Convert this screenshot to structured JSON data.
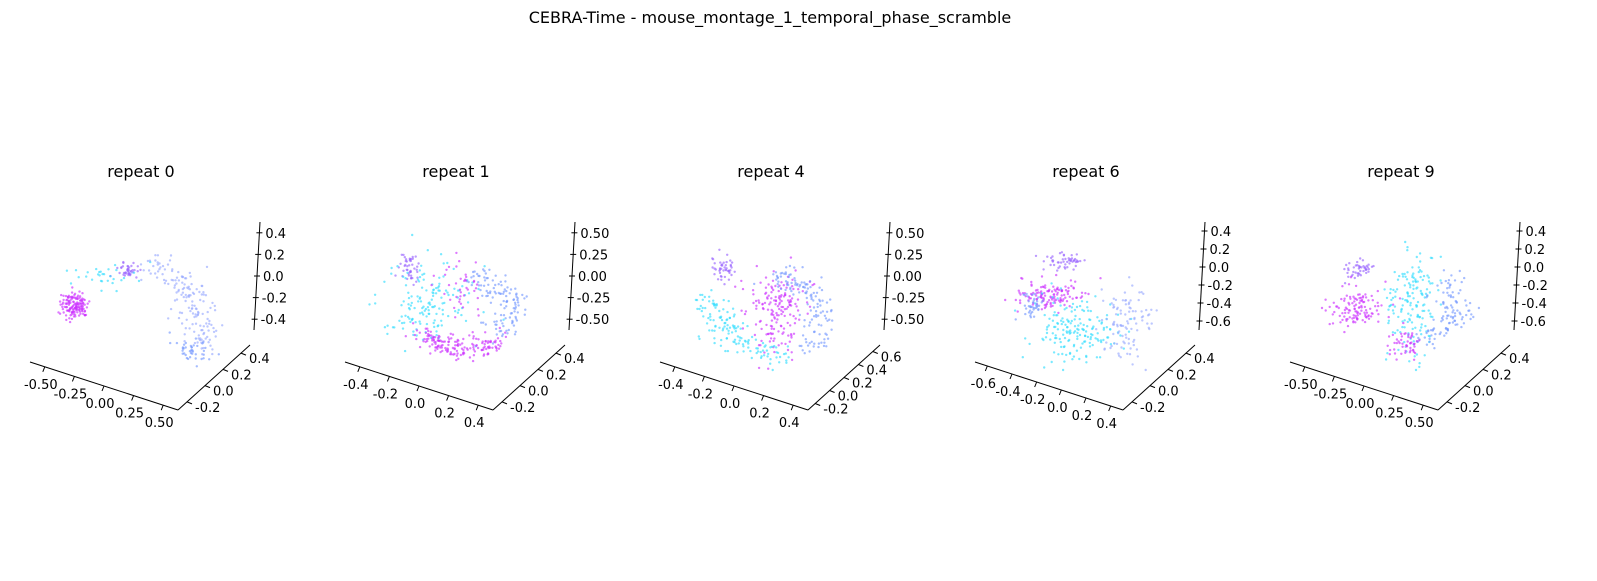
{
  "figure": {
    "title": "CEBRA-Time - mouse_montage_1_temporal_phase_scramble"
  },
  "palette": {
    "cyan": "#33ddff",
    "blue": "#7799ff",
    "periwinkle": "#99aaff",
    "purple": "#9966ff",
    "magenta": "#cc33ff"
  },
  "chart_data": [
    {
      "type": "scatter",
      "title": "repeat 0",
      "xticks": [
        "-0.50",
        "-0.25",
        "0.00",
        "0.25",
        "0.50"
      ],
      "yticks": [
        "-0.2",
        "0.0",
        "0.2",
        "0.4"
      ],
      "zticks": [
        "-0.4",
        "-0.2",
        "0.0",
        "0.2",
        "0.4"
      ],
      "clusters": [
        {
          "color": "magenta",
          "u": 0.14,
          "v": 0.52,
          "su": 0.04,
          "sv": 0.05,
          "n": 150
        },
        {
          "color": "purple",
          "u": 0.45,
          "v": 0.27,
          "su": 0.03,
          "sv": 0.03,
          "n": 40
        },
        {
          "color": "cyan",
          "u": 0.3,
          "v": 0.3,
          "su": 0.1,
          "sv": 0.05,
          "n": 30
        },
        {
          "color": "periwinkle",
          "arc": [
            [
              0.55,
              0.22
            ],
            [
              0.78,
              0.35
            ],
            [
              0.85,
              0.58
            ],
            [
              0.88,
              0.82
            ]
          ],
          "spread": 0.05,
          "n": 160
        },
        {
          "color": "blue",
          "u": 0.82,
          "v": 0.85,
          "su": 0.06,
          "sv": 0.05,
          "n": 40
        }
      ]
    },
    {
      "type": "scatter",
      "title": "repeat 1",
      "xticks": [
        "-0.4",
        "-0.2",
        "0.0",
        "0.2",
        "0.4"
      ],
      "yticks": [
        "-0.2",
        "0.0",
        "0.2",
        "0.4"
      ],
      "zticks": [
        "-0.50",
        "-0.25",
        "0.00",
        "0.25",
        "0.50"
      ],
      "clusters": [
        {
          "color": "purple",
          "u": 0.26,
          "v": 0.25,
          "su": 0.03,
          "sv": 0.05,
          "n": 45
        },
        {
          "color": "cyan",
          "u": 0.35,
          "v": 0.5,
          "su": 0.14,
          "sv": 0.16,
          "n": 150
        },
        {
          "color": "magenta",
          "arc": [
            [
              0.3,
              0.72
            ],
            [
              0.52,
              0.86
            ],
            [
              0.74,
              0.8
            ]
          ],
          "spread": 0.04,
          "n": 170
        },
        {
          "color": "blue",
          "arc": [
            [
              0.62,
              0.3
            ],
            [
              0.85,
              0.48
            ],
            [
              0.78,
              0.74
            ]
          ],
          "spread": 0.05,
          "n": 120
        },
        {
          "color": "magenta",
          "u": 0.55,
          "v": 0.4,
          "su": 0.06,
          "sv": 0.12,
          "n": 40
        }
      ]
    },
    {
      "type": "scatter",
      "title": "repeat 4",
      "xticks": [
        "-0.4",
        "-0.2",
        "0.0",
        "0.2",
        "0.4"
      ],
      "yticks": [
        "-0.2",
        "0.0",
        "0.2",
        "0.4",
        "0.6"
      ],
      "zticks": [
        "-0.50",
        "-0.25",
        "0.00",
        "0.25",
        "0.50"
      ],
      "clusters": [
        {
          "color": "purple",
          "u": 0.25,
          "v": 0.26,
          "su": 0.03,
          "sv": 0.04,
          "n": 45
        },
        {
          "color": "magenta",
          "u": 0.55,
          "v": 0.55,
          "su": 0.08,
          "sv": 0.16,
          "n": 170
        },
        {
          "color": "cyan",
          "arc": [
            [
              0.15,
              0.45
            ],
            [
              0.3,
              0.78
            ],
            [
              0.6,
              0.9
            ]
          ],
          "spread": 0.05,
          "n": 140
        },
        {
          "color": "blue",
          "arc": [
            [
              0.55,
              0.28
            ],
            [
              0.8,
              0.45
            ],
            [
              0.75,
              0.85
            ]
          ],
          "spread": 0.05,
          "n": 130
        }
      ]
    },
    {
      "type": "scatter",
      "title": "repeat 6",
      "xticks": [
        "-0.6",
        "-0.4",
        "-0.2",
        "0.0",
        "0.2",
        "0.4"
      ],
      "yticks": [
        "-0.2",
        "0.0",
        "0.2",
        "0.4"
      ],
      "zticks": [
        "-0.6",
        "-0.4",
        "-0.2",
        "0.0",
        "0.2",
        "0.4"
      ],
      "clusters": [
        {
          "color": "purple",
          "u": 0.4,
          "v": 0.2,
          "su": 0.05,
          "sv": 0.03,
          "n": 50
        },
        {
          "color": "magenta",
          "u": 0.32,
          "v": 0.45,
          "su": 0.1,
          "sv": 0.06,
          "n": 130
        },
        {
          "color": "blue",
          "u": 0.22,
          "v": 0.52,
          "su": 0.03,
          "sv": 0.05,
          "n": 40
        },
        {
          "color": "cyan",
          "u": 0.45,
          "v": 0.72,
          "su": 0.12,
          "sv": 0.12,
          "n": 170
        },
        {
          "color": "periwinkle",
          "u": 0.75,
          "v": 0.65,
          "su": 0.07,
          "sv": 0.15,
          "n": 100
        }
      ]
    },
    {
      "type": "scatter",
      "title": "repeat 9",
      "xticks": [
        "-0.50",
        "-0.25",
        "0.00",
        "0.25",
        "0.50"
      ],
      "yticks": [
        "-0.2",
        "0.0",
        "0.2",
        "0.4"
      ],
      "zticks": [
        "-0.6",
        "-0.4",
        "-0.2",
        "0.0",
        "0.2",
        "0.4"
      ],
      "clusters": [
        {
          "color": "purple",
          "u": 0.28,
          "v": 0.25,
          "su": 0.04,
          "sv": 0.03,
          "n": 45
        },
        {
          "color": "magenta",
          "u": 0.25,
          "v": 0.55,
          "su": 0.08,
          "sv": 0.08,
          "n": 120
        },
        {
          "color": "cyan",
          "u": 0.58,
          "v": 0.5,
          "su": 0.07,
          "sv": 0.2,
          "n": 160
        },
        {
          "color": "blue",
          "arc": [
            [
              0.65,
              0.78
            ],
            [
              0.85,
              0.58
            ],
            [
              0.8,
              0.3
            ]
          ],
          "spread": 0.05,
          "n": 110
        },
        {
          "color": "magenta",
          "u": 0.55,
          "v": 0.8,
          "su": 0.05,
          "sv": 0.05,
          "n": 50
        }
      ]
    }
  ]
}
